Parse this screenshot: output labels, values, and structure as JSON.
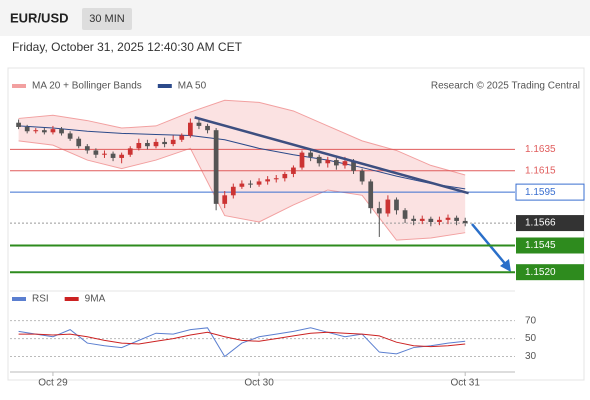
{
  "header": {
    "symbol": "EUR/USD",
    "timeframe": "30 MIN",
    "datetime": "Friday, October 31, 2025 12:40:30 AM CET"
  },
  "chart_data": [
    {
      "type": "candlestick",
      "source": "Research © 2025 Trading Central",
      "xlim": [
        -5,
        53.8
      ],
      "ylim": [
        1.1508,
        1.17
      ],
      "xticks": [
        {
          "value": 0,
          "label": "Oct 29"
        },
        {
          "value": 24,
          "label": "Oct 30"
        },
        {
          "value": 48,
          "label": "Oct 31"
        }
      ],
      "yticks": [
        1.1635,
        1.1615,
        1.1595,
        1.1566,
        1.1545,
        {
          "value": 1.152,
          "label": "1.1520"
        }
      ],
      "ytick_colors": [
        "#e05c5c",
        "#e05c5c",
        "#3a6fd0",
        "#333333",
        "#2e8b1e",
        "#2e8b1e"
      ],
      "ytick_boxed": [
        false,
        false,
        false,
        true,
        true,
        true
      ],
      "up_color": "#cc3333",
      "down_color": "#555555",
      "x": [
        -4,
        -3,
        -2,
        -1,
        0,
        1,
        2,
        3,
        4,
        5,
        6,
        7,
        8,
        9,
        10,
        11,
        12,
        13,
        14,
        15,
        16,
        17,
        18,
        19,
        20,
        21,
        22,
        23,
        24,
        25,
        26,
        27,
        28,
        29,
        30,
        31,
        32,
        33,
        34,
        35,
        36,
        37,
        38,
        39,
        40,
        41,
        42,
        43,
        44,
        45,
        46,
        47,
        48
      ],
      "open": [
        1.166,
        1.1656,
        1.1652,
        1.1653,
        1.1651,
        1.1654,
        1.165,
        1.1645,
        1.1638,
        1.1634,
        1.163,
        1.1631,
        1.1627,
        1.163,
        1.1636,
        1.1641,
        1.1638,
        1.1642,
        1.164,
        1.1644,
        1.1648,
        1.166,
        1.1657,
        1.1653,
        1.1584,
        1.1592,
        1.16,
        1.1603,
        1.1602,
        1.1605,
        1.1607,
        1.1608,
        1.1612,
        1.1618,
        1.1632,
        1.1628,
        1.1622,
        1.1625,
        1.162,
        1.1624,
        1.1615,
        1.1605,
        1.158,
        1.1575,
        1.1588,
        1.1578,
        1.157,
        1.1568,
        1.157,
        1.1567,
        1.1569,
        1.1571,
        1.1568
      ],
      "high": [
        1.1663,
        1.1658,
        1.1655,
        1.1655,
        1.1657,
        1.1656,
        1.1652,
        1.1647,
        1.164,
        1.1636,
        1.1634,
        1.1633,
        1.1632,
        1.1638,
        1.1645,
        1.1644,
        1.1645,
        1.1646,
        1.1648,
        1.165,
        1.1664,
        1.1663,
        1.1659,
        1.1655,
        1.1596,
        1.1603,
        1.1606,
        1.1606,
        1.1608,
        1.161,
        1.1611,
        1.1614,
        1.162,
        1.1634,
        1.1634,
        1.163,
        1.1628,
        1.1627,
        1.1628,
        1.1626,
        1.1617,
        1.1607,
        1.1586,
        1.1592,
        1.159,
        1.158,
        1.1573,
        1.1573,
        1.1572,
        1.1572,
        1.1574,
        1.1573,
        1.1571
      ],
      "low": [
        1.1654,
        1.165,
        1.165,
        1.1649,
        1.1649,
        1.1648,
        1.1643,
        1.1636,
        1.1631,
        1.1627,
        1.1627,
        1.1624,
        1.1622,
        1.1628,
        1.1634,
        1.1635,
        1.1636,
        1.1637,
        1.1638,
        1.1642,
        1.1646,
        1.1654,
        1.165,
        1.1578,
        1.158,
        1.1589,
        1.1598,
        1.1599,
        1.16,
        1.1602,
        1.1604,
        1.1605,
        1.1609,
        1.1616,
        1.1624,
        1.1619,
        1.1618,
        1.1616,
        1.1617,
        1.1612,
        1.1602,
        1.1575,
        1.1553,
        1.1572,
        1.1574,
        1.1566,
        1.1564,
        1.1565,
        1.1563,
        1.1564,
        1.1565,
        1.1564,
        1.1563
      ],
      "close": [
        1.1656,
        1.1652,
        1.1653,
        1.1651,
        1.1654,
        1.165,
        1.1645,
        1.1638,
        1.1634,
        1.163,
        1.1631,
        1.1627,
        1.163,
        1.1636,
        1.1641,
        1.1638,
        1.1642,
        1.164,
        1.1644,
        1.1648,
        1.166,
        1.1657,
        1.1653,
        1.1584,
        1.1592,
        1.16,
        1.1603,
        1.1602,
        1.1605,
        1.1607,
        1.1608,
        1.1612,
        1.1618,
        1.1632,
        1.1628,
        1.1622,
        1.1625,
        1.162,
        1.1624,
        1.1615,
        1.1605,
        1.158,
        1.1575,
        1.1588,
        1.1578,
        1.157,
        1.1568,
        1.157,
        1.1567,
        1.1569,
        1.1571,
        1.1568,
        1.1566
      ],
      "series": [
        {
          "name": "MA 20 + Bollinger Bands",
          "color": "#f2a0a0",
          "x": [
            -4,
            0,
            4,
            8,
            12,
            16,
            20,
            24,
            28,
            32,
            36,
            40,
            44,
            48
          ],
          "upper": [
            1.1664,
            1.1667,
            1.1662,
            1.1655,
            1.1657,
            1.167,
            1.1681,
            1.1679,
            1.1671,
            1.1657,
            1.1643,
            1.1634,
            1.162,
            1.1611
          ],
          "lower": [
            1.1643,
            1.1639,
            1.1625,
            1.1617,
            1.1625,
            1.1636,
            1.1573,
            1.1567,
            1.1583,
            1.1597,
            1.1592,
            1.155,
            1.1552,
            1.1557
          ]
        },
        {
          "name": "MA 50",
          "color": "#2c4a8a",
          "x": [
            -4,
            0,
            4,
            8,
            12,
            16,
            20,
            24,
            28,
            32,
            36,
            40,
            44,
            48
          ],
          "values": [
            1.1657,
            1.1655,
            1.1652,
            1.165,
            1.1649,
            1.1648,
            1.1644,
            1.1636,
            1.163,
            1.1625,
            1.1618,
            1.161,
            1.1603,
            1.1598
          ]
        }
      ],
      "trendline": {
        "x": [
          16.5,
          48.4
        ],
        "values": [
          1.1665,
          1.1594
        ],
        "color": "#3d4f80"
      }
    },
    {
      "type": "line",
      "xlim": [
        -5,
        53.8
      ],
      "ylim": [
        15,
        93
      ],
      "yticks": [
        70,
        50,
        30
      ],
      "series": [
        {
          "name": "RSI",
          "color": "#5b7fd0",
          "x": [
            -4,
            -2,
            0,
            2,
            4,
            6,
            8,
            10,
            12,
            14,
            16,
            18,
            20,
            22,
            24,
            26,
            28,
            30,
            32,
            34,
            36,
            38,
            40,
            42,
            44,
            46,
            48
          ],
          "values": [
            58,
            55,
            52,
            60,
            45,
            42,
            40,
            48,
            56,
            55,
            60,
            62,
            30,
            45,
            52,
            55,
            58,
            62,
            57,
            52,
            55,
            35,
            33,
            40,
            42,
            45,
            47
          ]
        },
        {
          "name": "9MA",
          "color": "#cc2222",
          "x": [
            -4,
            -2,
            0,
            2,
            4,
            6,
            8,
            10,
            12,
            14,
            16,
            18,
            20,
            22,
            24,
            26,
            28,
            30,
            32,
            34,
            36,
            38,
            40,
            42,
            44,
            46,
            48
          ],
          "values": [
            55,
            55,
            54,
            55,
            52,
            48,
            45,
            44,
            47,
            50,
            54,
            57,
            52,
            48,
            47,
            50,
            53,
            56,
            57,
            56,
            55,
            53,
            46,
            42,
            41,
            42,
            44
          ]
        }
      ]
    }
  ]
}
